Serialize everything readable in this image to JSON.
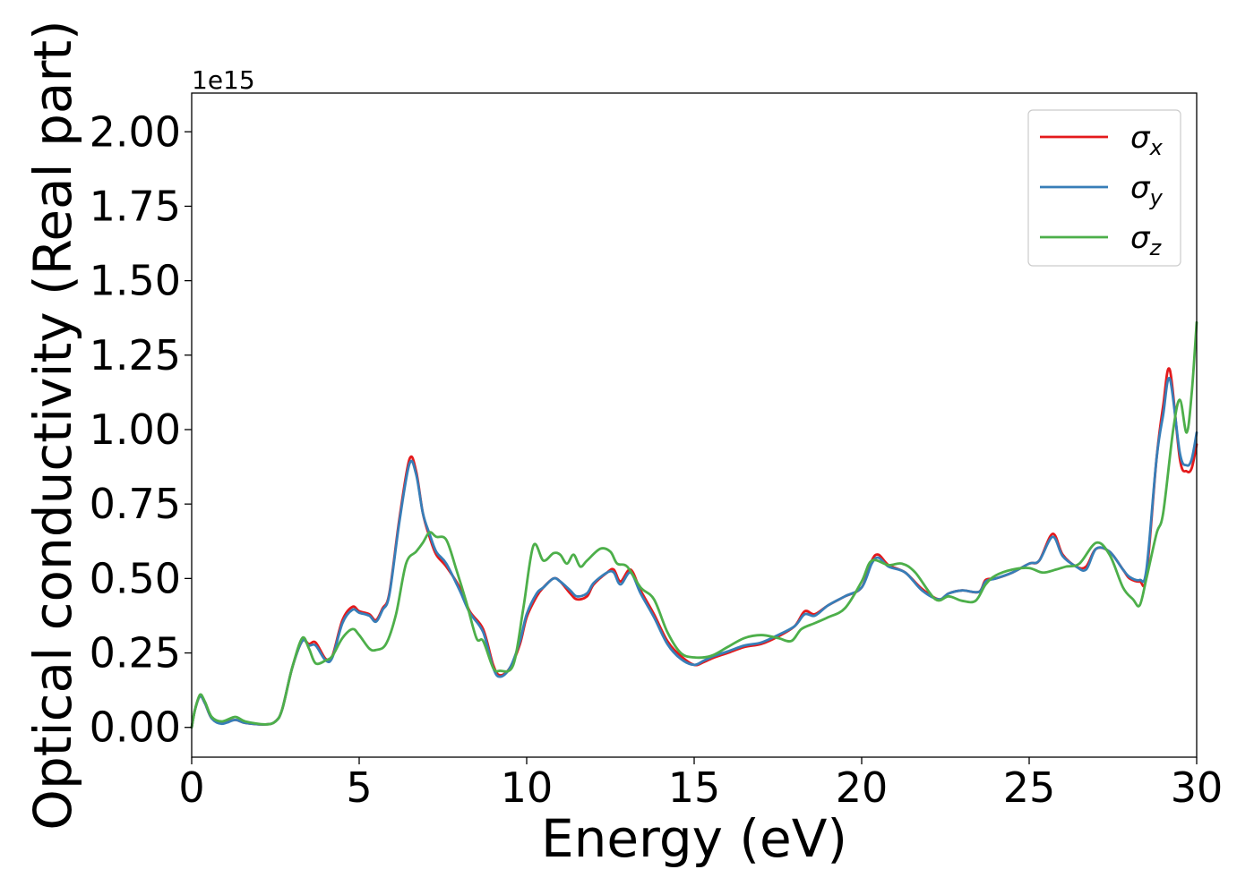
{
  "chart_data": {
    "type": "line",
    "xlabel": "Energy (eV)",
    "ylabel": "Optical conductivity (Real part)",
    "y_offset_label": "1e15",
    "xlim": [
      0,
      30
    ],
    "ylim": [
      -0.1,
      2.13
    ],
    "x_ticks": [
      0,
      5,
      10,
      15,
      20,
      25,
      30
    ],
    "x_tick_labels": [
      "0",
      "5",
      "10",
      "15",
      "20",
      "25",
      "30"
    ],
    "y_ticks": [
      0.0,
      0.25,
      0.5,
      0.75,
      1.0,
      1.25,
      1.5,
      1.75,
      2.0
    ],
    "y_tick_labels": [
      "0.00",
      "0.25",
      "0.50",
      "0.75",
      "1.00",
      "1.25",
      "1.50",
      "1.75",
      "2.00"
    ],
    "grid": false,
    "legend_position": "top-right",
    "series": [
      {
        "name": "σx",
        "symbol": "σ",
        "subscript": "x",
        "color": "#e41a1c",
        "points": [
          [
            0,
            0
          ],
          [
            0.1,
            0.06
          ],
          [
            0.25,
            0.105
          ],
          [
            0.4,
            0.08
          ],
          [
            0.6,
            0.03
          ],
          [
            0.9,
            0.015
          ],
          [
            1.3,
            0.025
          ],
          [
            1.6,
            0.015
          ],
          [
            2.2,
            0.01
          ],
          [
            2.5,
            0.02
          ],
          [
            2.7,
            0.06
          ],
          [
            3.0,
            0.2
          ],
          [
            3.3,
            0.29
          ],
          [
            3.5,
            0.28
          ],
          [
            3.7,
            0.285
          ],
          [
            4.0,
            0.23
          ],
          [
            4.2,
            0.24
          ],
          [
            4.5,
            0.36
          ],
          [
            4.8,
            0.405
          ],
          [
            5.0,
            0.39
          ],
          [
            5.3,
            0.38
          ],
          [
            5.5,
            0.36
          ],
          [
            5.7,
            0.4
          ],
          [
            5.9,
            0.45
          ],
          [
            6.2,
            0.7
          ],
          [
            6.5,
            0.9
          ],
          [
            6.7,
            0.86
          ],
          [
            6.9,
            0.72
          ],
          [
            7.1,
            0.64
          ],
          [
            7.3,
            0.58
          ],
          [
            7.6,
            0.54
          ],
          [
            8.0,
            0.47
          ],
          [
            8.3,
            0.39
          ],
          [
            8.7,
            0.33
          ],
          [
            9.0,
            0.21
          ],
          [
            9.2,
            0.175
          ],
          [
            9.5,
            0.2
          ],
          [
            9.8,
            0.28
          ],
          [
            10.0,
            0.37
          ],
          [
            10.3,
            0.44
          ],
          [
            10.5,
            0.47
          ],
          [
            10.8,
            0.5
          ],
          [
            11.0,
            0.49
          ],
          [
            11.3,
            0.45
          ],
          [
            11.5,
            0.43
          ],
          [
            11.8,
            0.44
          ],
          [
            12.0,
            0.48
          ],
          [
            12.4,
            0.52
          ],
          [
            12.6,
            0.53
          ],
          [
            12.8,
            0.49
          ],
          [
            13.1,
            0.53
          ],
          [
            13.4,
            0.46
          ],
          [
            13.8,
            0.38
          ],
          [
            14.2,
            0.29
          ],
          [
            14.6,
            0.24
          ],
          [
            15.0,
            0.21
          ],
          [
            15.3,
            0.22
          ],
          [
            15.6,
            0.235
          ],
          [
            16.0,
            0.25
          ],
          [
            16.5,
            0.27
          ],
          [
            17.0,
            0.28
          ],
          [
            17.5,
            0.305
          ],
          [
            18.0,
            0.34
          ],
          [
            18.3,
            0.39
          ],
          [
            18.6,
            0.38
          ],
          [
            19.0,
            0.41
          ],
          [
            19.5,
            0.44
          ],
          [
            20.0,
            0.47
          ],
          [
            20.3,
            0.56
          ],
          [
            20.5,
            0.58
          ],
          [
            20.8,
            0.545
          ],
          [
            21.3,
            0.52
          ],
          [
            21.8,
            0.465
          ],
          [
            22.3,
            0.43
          ],
          [
            22.6,
            0.45
          ],
          [
            23.0,
            0.46
          ],
          [
            23.5,
            0.455
          ],
          [
            23.7,
            0.495
          ],
          [
            24.0,
            0.5
          ],
          [
            24.5,
            0.52
          ],
          [
            25.0,
            0.55
          ],
          [
            25.3,
            0.56
          ],
          [
            25.7,
            0.65
          ],
          [
            26.0,
            0.58
          ],
          [
            26.4,
            0.54
          ],
          [
            26.7,
            0.54
          ],
          [
            27.0,
            0.6
          ],
          [
            27.4,
            0.59
          ],
          [
            27.8,
            0.53
          ],
          [
            28.0,
            0.5
          ],
          [
            28.3,
            0.49
          ],
          [
            28.5,
            0.51
          ],
          [
            28.8,
            0.9
          ],
          [
            29.0,
            1.08
          ],
          [
            29.2,
            1.2
          ],
          [
            29.5,
            0.9
          ],
          [
            29.7,
            0.86
          ],
          [
            29.85,
            0.87
          ],
          [
            30.0,
            0.95
          ]
        ]
      },
      {
        "name": "σy",
        "symbol": "σ",
        "subscript": "y",
        "color": "#377eb8",
        "points": [
          [
            0,
            0
          ],
          [
            0.1,
            0.06
          ],
          [
            0.25,
            0.105
          ],
          [
            0.4,
            0.08
          ],
          [
            0.6,
            0.03
          ],
          [
            0.9,
            0.012
          ],
          [
            1.3,
            0.025
          ],
          [
            1.6,
            0.015
          ],
          [
            2.2,
            0.01
          ],
          [
            2.5,
            0.02
          ],
          [
            2.7,
            0.06
          ],
          [
            3.0,
            0.2
          ],
          [
            3.3,
            0.29
          ],
          [
            3.5,
            0.275
          ],
          [
            3.7,
            0.275
          ],
          [
            4.0,
            0.225
          ],
          [
            4.2,
            0.235
          ],
          [
            4.5,
            0.35
          ],
          [
            4.8,
            0.395
          ],
          [
            5.0,
            0.385
          ],
          [
            5.3,
            0.375
          ],
          [
            5.5,
            0.355
          ],
          [
            5.7,
            0.395
          ],
          [
            5.9,
            0.445
          ],
          [
            6.2,
            0.69
          ],
          [
            6.5,
            0.885
          ],
          [
            6.7,
            0.85
          ],
          [
            6.9,
            0.72
          ],
          [
            7.1,
            0.65
          ],
          [
            7.3,
            0.59
          ],
          [
            7.6,
            0.55
          ],
          [
            8.0,
            0.46
          ],
          [
            8.3,
            0.385
          ],
          [
            8.7,
            0.32
          ],
          [
            9.0,
            0.2
          ],
          [
            9.2,
            0.17
          ],
          [
            9.5,
            0.2
          ],
          [
            9.8,
            0.29
          ],
          [
            10.0,
            0.38
          ],
          [
            10.3,
            0.45
          ],
          [
            10.5,
            0.47
          ],
          [
            10.8,
            0.5
          ],
          [
            11.0,
            0.49
          ],
          [
            11.3,
            0.46
          ],
          [
            11.5,
            0.44
          ],
          [
            11.8,
            0.45
          ],
          [
            12.0,
            0.485
          ],
          [
            12.4,
            0.52
          ],
          [
            12.6,
            0.52
          ],
          [
            12.8,
            0.48
          ],
          [
            13.1,
            0.52
          ],
          [
            13.4,
            0.45
          ],
          [
            13.8,
            0.37
          ],
          [
            14.2,
            0.28
          ],
          [
            14.6,
            0.23
          ],
          [
            15.0,
            0.21
          ],
          [
            15.3,
            0.225
          ],
          [
            15.6,
            0.24
          ],
          [
            16.0,
            0.255
          ],
          [
            16.5,
            0.275
          ],
          [
            17.0,
            0.285
          ],
          [
            17.5,
            0.31
          ],
          [
            18.0,
            0.34
          ],
          [
            18.3,
            0.38
          ],
          [
            18.6,
            0.375
          ],
          [
            19.0,
            0.41
          ],
          [
            19.5,
            0.44
          ],
          [
            20.0,
            0.47
          ],
          [
            20.3,
            0.55
          ],
          [
            20.5,
            0.57
          ],
          [
            20.8,
            0.54
          ],
          [
            21.3,
            0.52
          ],
          [
            21.8,
            0.46
          ],
          [
            22.3,
            0.43
          ],
          [
            22.6,
            0.45
          ],
          [
            23.0,
            0.46
          ],
          [
            23.5,
            0.455
          ],
          [
            23.7,
            0.49
          ],
          [
            24.0,
            0.5
          ],
          [
            24.5,
            0.52
          ],
          [
            25.0,
            0.55
          ],
          [
            25.3,
            0.56
          ],
          [
            25.7,
            0.64
          ],
          [
            26.0,
            0.575
          ],
          [
            26.4,
            0.54
          ],
          [
            26.7,
            0.53
          ],
          [
            27.0,
            0.6
          ],
          [
            27.4,
            0.59
          ],
          [
            27.8,
            0.53
          ],
          [
            28.0,
            0.505
          ],
          [
            28.3,
            0.495
          ],
          [
            28.5,
            0.53
          ],
          [
            28.8,
            0.9
          ],
          [
            29.0,
            1.05
          ],
          [
            29.2,
            1.17
          ],
          [
            29.5,
            0.92
          ],
          [
            29.7,
            0.88
          ],
          [
            29.85,
            0.9
          ],
          [
            30.0,
            0.99
          ]
        ]
      },
      {
        "name": "σz",
        "symbol": "σ",
        "subscript": "z",
        "color": "#4daf4a",
        "points": [
          [
            0,
            0
          ],
          [
            0.1,
            0.06
          ],
          [
            0.25,
            0.11
          ],
          [
            0.4,
            0.085
          ],
          [
            0.6,
            0.035
          ],
          [
            0.9,
            0.02
          ],
          [
            1.3,
            0.035
          ],
          [
            1.6,
            0.02
          ],
          [
            2.2,
            0.01
          ],
          [
            2.5,
            0.02
          ],
          [
            2.7,
            0.06
          ],
          [
            3.0,
            0.2
          ],
          [
            3.3,
            0.3
          ],
          [
            3.5,
            0.265
          ],
          [
            3.7,
            0.215
          ],
          [
            4.0,
            0.225
          ],
          [
            4.2,
            0.24
          ],
          [
            4.5,
            0.3
          ],
          [
            4.8,
            0.33
          ],
          [
            5.0,
            0.31
          ],
          [
            5.3,
            0.265
          ],
          [
            5.5,
            0.26
          ],
          [
            5.8,
            0.28
          ],
          [
            6.1,
            0.38
          ],
          [
            6.4,
            0.55
          ],
          [
            6.7,
            0.59
          ],
          [
            6.9,
            0.62
          ],
          [
            7.1,
            0.655
          ],
          [
            7.3,
            0.64
          ],
          [
            7.6,
            0.63
          ],
          [
            7.9,
            0.53
          ],
          [
            8.2,
            0.42
          ],
          [
            8.5,
            0.3
          ],
          [
            8.7,
            0.29
          ],
          [
            9.0,
            0.2
          ],
          [
            9.2,
            0.19
          ],
          [
            9.6,
            0.21
          ],
          [
            9.9,
            0.4
          ],
          [
            10.2,
            0.61
          ],
          [
            10.5,
            0.56
          ],
          [
            10.8,
            0.585
          ],
          [
            11.0,
            0.58
          ],
          [
            11.2,
            0.55
          ],
          [
            11.4,
            0.58
          ],
          [
            11.6,
            0.54
          ],
          [
            11.8,
            0.56
          ],
          [
            12.2,
            0.6
          ],
          [
            12.5,
            0.59
          ],
          [
            12.7,
            0.55
          ],
          [
            13.0,
            0.54
          ],
          [
            13.4,
            0.47
          ],
          [
            13.8,
            0.43
          ],
          [
            14.2,
            0.32
          ],
          [
            14.6,
            0.25
          ],
          [
            15.0,
            0.235
          ],
          [
            15.5,
            0.24
          ],
          [
            16.0,
            0.27
          ],
          [
            16.5,
            0.3
          ],
          [
            17.0,
            0.31
          ],
          [
            17.5,
            0.3
          ],
          [
            17.9,
            0.29
          ],
          [
            18.2,
            0.33
          ],
          [
            18.6,
            0.35
          ],
          [
            19.0,
            0.37
          ],
          [
            19.5,
            0.4
          ],
          [
            20.0,
            0.49
          ],
          [
            20.3,
            0.56
          ],
          [
            20.8,
            0.545
          ],
          [
            21.2,
            0.55
          ],
          [
            21.6,
            0.52
          ],
          [
            22.2,
            0.43
          ],
          [
            22.6,
            0.44
          ],
          [
            23.0,
            0.425
          ],
          [
            23.4,
            0.425
          ],
          [
            23.7,
            0.48
          ],
          [
            24.0,
            0.51
          ],
          [
            24.5,
            0.53
          ],
          [
            25.0,
            0.535
          ],
          [
            25.4,
            0.52
          ],
          [
            25.8,
            0.53
          ],
          [
            26.1,
            0.54
          ],
          [
            26.5,
            0.55
          ],
          [
            27.0,
            0.62
          ],
          [
            27.4,
            0.58
          ],
          [
            27.8,
            0.47
          ],
          [
            28.1,
            0.43
          ],
          [
            28.3,
            0.41
          ],
          [
            28.5,
            0.5
          ],
          [
            28.8,
            0.65
          ],
          [
            29.0,
            0.72
          ],
          [
            29.3,
            1.0
          ],
          [
            29.5,
            1.1
          ],
          [
            29.7,
            0.99
          ],
          [
            29.85,
            1.12
          ],
          [
            30.0,
            1.36
          ]
        ]
      }
    ]
  }
}
